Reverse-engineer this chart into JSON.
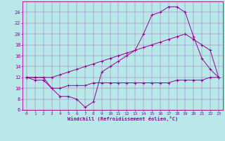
{
  "xlabel": "Windchill (Refroidissement éolien,°C)",
  "background_color": "#b8e8e8",
  "line_color": "#990099",
  "xlim": [
    -0.5,
    23.5
  ],
  "ylim": [
    6,
    26
  ],
  "xticks": [
    0,
    1,
    2,
    3,
    4,
    5,
    6,
    7,
    8,
    9,
    10,
    11,
    12,
    13,
    14,
    15,
    16,
    17,
    18,
    19,
    20,
    21,
    22,
    23
  ],
  "yticks": [
    6,
    8,
    10,
    12,
    14,
    16,
    18,
    20,
    22,
    24
  ],
  "line1_x": [
    0,
    1,
    2,
    3,
    4,
    5,
    6,
    7,
    8,
    9,
    10,
    11,
    12,
    13,
    14,
    15,
    16,
    17,
    18,
    19,
    20,
    21,
    22,
    23
  ],
  "line1_y": [
    12,
    11.5,
    11.5,
    10,
    8.5,
    8.5,
    8,
    6.5,
    7.5,
    13,
    14,
    15,
    16,
    17,
    20,
    23.5,
    24,
    25,
    25,
    24,
    19.5,
    15.5,
    13.5,
    12
  ],
  "line2_x": [
    0,
    1,
    2,
    3,
    4,
    5,
    6,
    7,
    8,
    9,
    10,
    11,
    12,
    13,
    14,
    15,
    16,
    17,
    18,
    19,
    20,
    21,
    22,
    23
  ],
  "line2_y": [
    12,
    12,
    12,
    12,
    12.5,
    13,
    13.5,
    14,
    14.5,
    15,
    15.5,
    16,
    16.5,
    17,
    17.5,
    18,
    18.5,
    19,
    19.5,
    20,
    19,
    18,
    17,
    12
  ],
  "line3_x": [
    0,
    1,
    2,
    3,
    4,
    5,
    6,
    7,
    8,
    9,
    10,
    11,
    12,
    13,
    14,
    15,
    16,
    17,
    18,
    19,
    20,
    21,
    22,
    23
  ],
  "line3_y": [
    12,
    12,
    12,
    10,
    10,
    10.5,
    10.5,
    10.5,
    11,
    11,
    11,
    11,
    11,
    11,
    11,
    11,
    11,
    11,
    11.5,
    11.5,
    11.5,
    11.5,
    12,
    12
  ]
}
